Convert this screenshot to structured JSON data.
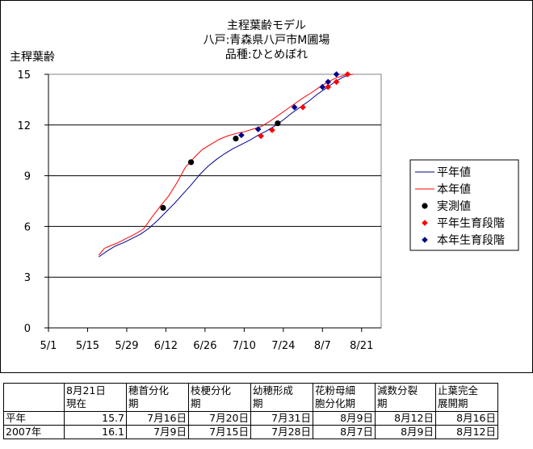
{
  "chart_data": {
    "type": "line",
    "title_lines": [
      "主程葉齢モデル",
      "八戸:青森県八戸市M圃場",
      "品種:ひとめぼれ"
    ],
    "ylabel": "主稈葉齢",
    "ylim": [
      0,
      15
    ],
    "yticks": [
      0,
      3,
      6,
      9,
      12,
      15
    ],
    "xlim": [
      "2007-05-01",
      "2007-08-28"
    ],
    "xticks": [
      "5/1",
      "5/15",
      "5/29",
      "6/12",
      "6/26",
      "7/10",
      "7/24",
      "8/7",
      "8/21"
    ],
    "grid": "horizontal",
    "legend_position": "right",
    "series": [
      {
        "name": "平年値",
        "kind": "line",
        "color": "#00008b",
        "x": [
          "2007-05-19",
          "2007-05-22",
          "2007-05-25",
          "2007-05-28",
          "2007-05-31",
          "2007-06-03",
          "2007-06-06",
          "2007-06-09",
          "2007-06-12",
          "2007-06-15",
          "2007-06-18",
          "2007-06-21",
          "2007-06-24",
          "2007-06-27",
          "2007-06-30",
          "2007-07-03",
          "2007-07-06",
          "2007-07-09",
          "2007-07-12",
          "2007-07-15",
          "2007-07-18",
          "2007-07-21",
          "2007-07-24",
          "2007-07-27",
          "2007-07-30",
          "2007-08-02",
          "2007-08-05",
          "2007-08-08",
          "2007-08-11",
          "2007-08-14",
          "2007-08-17"
        ],
        "y": [
          4.2,
          4.55,
          4.85,
          5.05,
          5.3,
          5.55,
          5.9,
          6.35,
          6.85,
          7.35,
          7.9,
          8.45,
          9.05,
          9.55,
          9.95,
          10.3,
          10.6,
          10.85,
          11.1,
          11.4,
          11.65,
          11.95,
          12.3,
          12.7,
          13.05,
          13.4,
          13.8,
          14.15,
          14.5,
          14.8,
          15.0
        ]
      },
      {
        "name": "本年値",
        "kind": "line",
        "color": "#ff0000",
        "x": [
          "2007-05-19",
          "2007-05-21",
          "2007-05-23",
          "2007-05-26",
          "2007-05-29",
          "2007-06-01",
          "2007-06-04",
          "2007-06-07",
          "2007-06-10",
          "2007-06-13",
          "2007-06-16",
          "2007-06-19",
          "2007-06-22",
          "2007-06-25",
          "2007-06-28",
          "2007-07-01",
          "2007-07-04",
          "2007-07-07",
          "2007-07-10",
          "2007-07-13",
          "2007-07-16",
          "2007-07-19",
          "2007-07-22",
          "2007-07-25",
          "2007-07-28",
          "2007-07-31",
          "2007-08-03",
          "2007-08-06",
          "2007-08-09",
          "2007-08-12",
          "2007-08-15",
          "2007-08-18"
        ],
        "y": [
          4.3,
          4.7,
          4.85,
          5.05,
          5.3,
          5.55,
          5.85,
          6.55,
          7.2,
          7.8,
          8.6,
          9.5,
          10.05,
          10.55,
          10.85,
          11.15,
          11.35,
          11.5,
          11.6,
          11.75,
          11.9,
          12.2,
          12.55,
          12.9,
          13.25,
          13.6,
          13.9,
          14.25,
          14.55,
          14.8,
          14.95,
          15.0
        ]
      },
      {
        "name": "実測値",
        "kind": "marker",
        "marker": "circle",
        "color": "#000000",
        "x": [
          "2007-06-11",
          "2007-06-21",
          "2007-07-07",
          "2007-07-22"
        ],
        "y": [
          7.1,
          9.8,
          11.2,
          12.1
        ]
      },
      {
        "name": "平年生育段階",
        "kind": "marker",
        "marker": "diamond",
        "color": "#ff0000",
        "x": [
          "2007-07-16",
          "2007-07-20",
          "2007-07-31",
          "2007-08-09",
          "2007-08-12",
          "2007-08-16"
        ],
        "y": [
          11.35,
          11.7,
          13.05,
          14.25,
          14.55,
          15.0
        ]
      },
      {
        "name": "本年生育段階",
        "kind": "marker",
        "marker": "diamond",
        "color": "#00008b",
        "x": [
          "2007-07-09",
          "2007-07-15",
          "2007-07-28",
          "2007-08-07",
          "2007-08-09",
          "2007-08-12"
        ],
        "y": [
          11.4,
          11.75,
          13.05,
          14.25,
          14.55,
          15.0
        ]
      }
    ]
  },
  "stage_table": {
    "headers": [
      "",
      "8月21日\n現在",
      "穂首分化\n期",
      "枝梗分化\n期",
      "幼穂形成\n期",
      "花粉母細\n胞分化期",
      "減数分裂\n期",
      "止葉完全\n展開期"
    ],
    "rows": [
      [
        "平年",
        "15.7",
        "7月16日",
        "7月20日",
        "7月31日",
        "8月9日",
        "8月12日",
        "8月16日"
      ],
      [
        "2007年",
        "16.1",
        "7月9日",
        "7月15日",
        "7月28日",
        "8月7日",
        "8月9日",
        "8月12日"
      ]
    ]
  }
}
